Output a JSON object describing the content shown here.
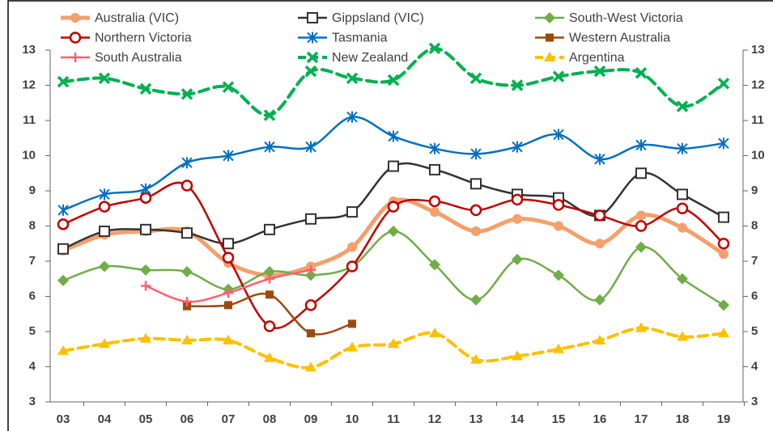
{
  "chart_data": {
    "type": "line",
    "categories": [
      "03",
      "04",
      "05",
      "06",
      "07",
      "08",
      "09",
      "10",
      "11",
      "12",
      "13",
      "14",
      "15",
      "16",
      "17",
      "18",
      "19"
    ],
    "ylim": [
      3,
      13
    ],
    "yticks": [
      3,
      4,
      5,
      6,
      7,
      8,
      9,
      10,
      11,
      12,
      13
    ],
    "y2lim": [
      3,
      13
    ],
    "y2ticks": [
      3,
      4,
      5,
      6,
      7,
      8,
      9,
      10,
      11,
      12,
      13
    ],
    "grid": false,
    "smooth": true,
    "series": [
      {
        "name": "Australia (VIC)",
        "color": "#f4a06c",
        "marker": "circle",
        "dashed": false,
        "width": 5,
        "values": [
          7.3,
          7.75,
          7.85,
          7.85,
          6.95,
          6.6,
          6.85,
          7.4,
          8.7,
          8.4,
          7.85,
          8.2,
          8.0,
          7.5,
          8.3,
          7.95,
          7.2
        ]
      },
      {
        "name": "Gippsland (VIC)",
        "color": "#333333",
        "marker": "square-open",
        "dashed": false,
        "width": 2.5,
        "values": [
          7.35,
          7.85,
          7.9,
          7.8,
          7.5,
          7.9,
          8.2,
          8.4,
          9.7,
          9.6,
          9.2,
          8.9,
          8.8,
          8.3,
          9.5,
          8.9,
          8.25
        ]
      },
      {
        "name": "South-West Victoria",
        "color": "#70ad47",
        "marker": "diamond",
        "dashed": false,
        "width": 2.5,
        "values": [
          6.45,
          6.85,
          6.75,
          6.7,
          6.2,
          6.7,
          6.6,
          6.85,
          7.85,
          6.9,
          5.9,
          7.05,
          6.6,
          5.9,
          7.4,
          6.5,
          5.75
        ]
      },
      {
        "name": "Northern Victoria",
        "color": "#c00000",
        "marker": "circle-open",
        "dashed": false,
        "width": 2.5,
        "values": [
          8.05,
          8.55,
          8.8,
          9.15,
          7.1,
          5.15,
          5.75,
          6.85,
          8.55,
          8.7,
          8.45,
          8.75,
          8.6,
          8.3,
          8.0,
          8.5,
          7.5
        ]
      },
      {
        "name": "Tasmania",
        "color": "#0070c0",
        "marker": "asterisk",
        "dashed": false,
        "width": 2.5,
        "values": [
          8.45,
          8.9,
          9.05,
          9.8,
          10.0,
          10.25,
          10.25,
          11.1,
          10.55,
          10.2,
          10.05,
          10.25,
          10.6,
          9.9,
          10.3,
          10.2,
          10.35
        ]
      },
      {
        "name": "Western Australia",
        "color": "#9c4a0f",
        "marker": "square",
        "dashed": false,
        "width": 2.5,
        "values": [
          null,
          null,
          null,
          5.72,
          5.75,
          6.05,
          4.95,
          5.22,
          null,
          null,
          null,
          null,
          null,
          null,
          null,
          null,
          null
        ]
      },
      {
        "name": "South Australia",
        "color": "#ff6070",
        "marker": "plus",
        "dashed": false,
        "width": 2.5,
        "values": [
          null,
          null,
          6.3,
          5.85,
          6.1,
          6.5,
          6.75,
          null,
          null,
          null,
          null,
          null,
          null,
          null,
          null,
          null,
          null
        ]
      },
      {
        "name": "New Zealand",
        "color": "#00b050",
        "marker": "x",
        "dashed": true,
        "width": 4,
        "values": [
          12.1,
          12.2,
          11.9,
          11.75,
          11.95,
          11.15,
          12.4,
          12.2,
          12.15,
          13.05,
          12.2,
          12.0,
          12.25,
          12.4,
          12.35,
          11.4,
          12.05
        ]
      },
      {
        "name": "Argentina",
        "color": "#ffc000",
        "marker": "triangle",
        "dashed": true,
        "width": 4,
        "values": [
          4.45,
          4.65,
          4.8,
          4.75,
          4.75,
          4.25,
          3.98,
          4.55,
          4.65,
          4.95,
          4.2,
          4.3,
          4.5,
          4.75,
          5.1,
          4.85,
          4.95
        ]
      }
    ]
  }
}
